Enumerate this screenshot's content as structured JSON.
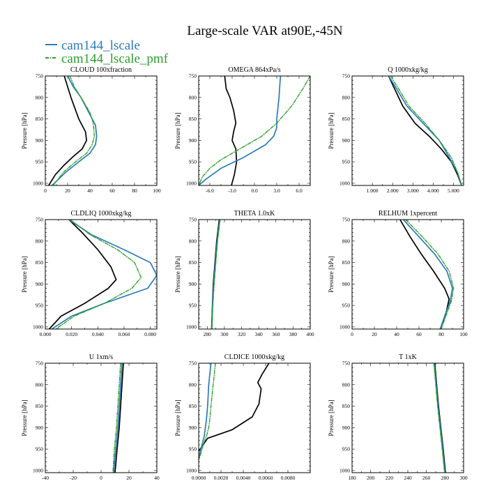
{
  "title": "Large-scale VAR at90E,-45N",
  "legend": [
    {
      "label": "cam144_lscale",
      "color": "#2b7bb9",
      "dashed": false
    },
    {
      "label": "cam144_lscale_pmf",
      "color": "#2ca02c",
      "dashed": true
    }
  ],
  "colors": {
    "control": "#000000",
    "lscale": "#2b7bb9",
    "pmf": "#2ca02c"
  },
  "chart_data": [
    {
      "type": "line",
      "title": "CLOUD 100xfraction",
      "ylabel": "Pressure [hPa]",
      "xlim": [
        0,
        100
      ],
      "ylim": [
        1005,
        750
      ],
      "xticks": [
        0,
        20,
        40,
        60,
        80,
        100
      ],
      "xtick_labels": [
        "0",
        "20",
        "40",
        "60",
        "80",
        "100"
      ],
      "yticks": [
        750,
        800,
        850,
        900,
        950,
        1000
      ],
      "ytick_labels": [
        "750",
        "800",
        "850",
        "900",
        "950",
        "1000"
      ],
      "series": [
        {
          "key": "control",
          "x": [
            17,
            20,
            23,
            30,
            36,
            37,
            33,
            24,
            16,
            9,
            3
          ],
          "y": [
            750,
            775,
            800,
            850,
            880,
            900,
            920,
            940,
            960,
            980,
            1005
          ]
        },
        {
          "key": "lscale",
          "x": [
            20,
            25,
            32,
            40,
            45,
            46,
            45,
            40,
            30,
            18,
            6
          ],
          "y": [
            750,
            775,
            800,
            840,
            865,
            890,
            910,
            930,
            950,
            975,
            1005
          ]
        },
        {
          "key": "pmf",
          "x": [
            22,
            26,
            32,
            40,
            43,
            44,
            42,
            37,
            27,
            16,
            7
          ],
          "y": [
            750,
            775,
            800,
            835,
            860,
            890,
            910,
            930,
            950,
            975,
            1005
          ]
        }
      ]
    },
    {
      "type": "line",
      "title": "OMEGA 864xPa/s",
      "ylabel": "Pressure [hPa]",
      "xlim": [
        -7.5,
        7.5
      ],
      "ylim": [
        1005,
        750
      ],
      "xticks": [
        -6,
        -3,
        0,
        3,
        6
      ],
      "xtick_labels": [
        "-6.0",
        "-3.0",
        "0.0",
        "3.0",
        "6.0"
      ],
      "yticks": [
        750,
        800,
        850,
        900,
        950,
        1000
      ],
      "ytick_labels": [
        "750",
        "800",
        "850",
        "900",
        "950",
        "1000"
      ],
      "series": [
        {
          "key": "control",
          "x": [
            -4.0,
            -3.8,
            -3.3,
            -2.8,
            -2.5,
            -2.8,
            -3.0,
            -2.5,
            -2.4,
            -2.7,
            -3.1
          ],
          "y": [
            750,
            780,
            800,
            830,
            860,
            880,
            900,
            920,
            950,
            980,
            1005
          ]
        },
        {
          "key": "lscale",
          "x": [
            3.5,
            3.3,
            3.0,
            3.0,
            2.6,
            1.5,
            -1.5,
            -4.5,
            -6.5,
            -7.5
          ],
          "y": [
            750,
            800,
            850,
            870,
            890,
            910,
            940,
            965,
            990,
            1005
          ]
        },
        {
          "key": "pmf",
          "x": [
            7.5,
            6.5,
            5.0,
            3.0,
            1.0,
            -2.0,
            -4.5,
            -6.0,
            -7.0,
            -7.5
          ],
          "y": [
            750,
            780,
            820,
            860,
            890,
            920,
            945,
            965,
            985,
            1005
          ]
        }
      ]
    },
    {
      "type": "line",
      "title": "Q 1000xkg/kg",
      "ylabel": "Pressure [hPa]",
      "xlim": [
        0,
        5.5
      ],
      "ylim": [
        1005,
        750
      ],
      "xticks": [
        1,
        2,
        3,
        4,
        5
      ],
      "xtick_labels": [
        "1.000",
        "2.000",
        "3.000",
        "4.000",
        "5.000"
      ],
      "yticks": [
        750,
        800,
        850,
        900,
        950,
        1000
      ],
      "ytick_labels": [
        "750",
        "800",
        "850",
        "900",
        "950",
        "1000"
      ],
      "series": [
        {
          "key": "control",
          "x": [
            1.8,
            2.1,
            2.5,
            3.1,
            3.8,
            4.4,
            4.9,
            5.2,
            5.4
          ],
          "y": [
            750,
            780,
            820,
            860,
            890,
            920,
            950,
            980,
            1005
          ]
        },
        {
          "key": "lscale",
          "x": [
            1.8,
            2.2,
            2.7,
            3.5,
            4.3,
            4.8,
            5.2,
            5.4
          ],
          "y": [
            750,
            780,
            820,
            860,
            900,
            940,
            975,
            1005
          ]
        },
        {
          "key": "pmf",
          "x": [
            1.9,
            2.3,
            2.8,
            3.6,
            4.3,
            4.9,
            5.2,
            5.4
          ],
          "y": [
            750,
            780,
            820,
            860,
            900,
            940,
            975,
            1005
          ]
        }
      ]
    },
    {
      "type": "line",
      "title": "CLDLIQ 1000xkg/kg",
      "ylabel": "Pressure [hPa]",
      "xlim": [
        0,
        0.085
      ],
      "ylim": [
        1005,
        750
      ],
      "xticks": [
        0,
        0.02,
        0.04,
        0.06,
        0.08
      ],
      "xtick_labels": [
        "0.000",
        "0.020",
        "0.040",
        "0.060",
        "0.080"
      ],
      "yticks": [
        750,
        800,
        850,
        900,
        950,
        1000
      ],
      "ytick_labels": [
        "750",
        "800",
        "850",
        "900",
        "950",
        "1000"
      ],
      "series": [
        {
          "key": "control",
          "x": [
            0.018,
            0.028,
            0.04,
            0.05,
            0.054,
            0.048,
            0.03,
            0.012,
            0.003
          ],
          "y": [
            750,
            780,
            820,
            860,
            890,
            910,
            945,
            975,
            1005
          ]
        },
        {
          "key": "lscale",
          "x": [
            0.018,
            0.035,
            0.06,
            0.08,
            0.085,
            0.078,
            0.045,
            0.02,
            0.005
          ],
          "y": [
            750,
            785,
            820,
            850,
            880,
            910,
            945,
            975,
            1005
          ]
        },
        {
          "key": "pmf",
          "x": [
            0.019,
            0.034,
            0.055,
            0.068,
            0.073,
            0.066,
            0.045,
            0.022,
            0.008
          ],
          "y": [
            750,
            785,
            820,
            850,
            885,
            910,
            945,
            975,
            1005
          ]
        }
      ]
    },
    {
      "type": "line",
      "title": "THETA 1.0xK",
      "ylabel": "Pressure [hPa]",
      "xlim": [
        270,
        400
      ],
      "ylim": [
        1005,
        750
      ],
      "xticks": [
        280,
        300,
        320,
        340,
        360,
        380,
        400
      ],
      "xtick_labels": [
        "280",
        "300",
        "320",
        "340",
        "360",
        "380",
        "400"
      ],
      "yticks": [
        750,
        800,
        850,
        900,
        950,
        1000
      ],
      "ytick_labels": [
        "750",
        "800",
        "850",
        "900",
        "950",
        "1000"
      ],
      "series": [
        {
          "key": "control",
          "x": [
            294,
            291,
            289,
            287,
            286,
            285
          ],
          "y": [
            750,
            800,
            850,
            900,
            950,
            1005
          ]
        },
        {
          "key": "lscale",
          "x": [
            294.5,
            291.5,
            289.5,
            287.5,
            286.2,
            285.3
          ],
          "y": [
            750,
            800,
            850,
            900,
            950,
            1005
          ]
        },
        {
          "key": "pmf",
          "x": [
            295,
            292,
            290,
            288,
            286.5,
            285.5
          ],
          "y": [
            750,
            800,
            850,
            900,
            950,
            1005
          ]
        }
      ]
    },
    {
      "type": "line",
      "title": "RELHUM 1xpercent",
      "ylabel": "Pressure [hPa]",
      "xlim": [
        0,
        100
      ],
      "ylim": [
        1005,
        750
      ],
      "xticks": [
        0,
        20,
        40,
        60,
        80,
        100
      ],
      "xtick_labels": [
        "0",
        "20",
        "40",
        "60",
        "80",
        "100"
      ],
      "yticks": [
        750,
        800,
        850,
        900,
        950,
        1000
      ],
      "ytick_labels": [
        "750",
        "800",
        "850",
        "900",
        "950",
        "1000"
      ],
      "series": [
        {
          "key": "control",
          "x": [
            43,
            52,
            62,
            73,
            83,
            87,
            84,
            79
          ],
          "y": [
            750,
            790,
            830,
            870,
            910,
            935,
            970,
            1005
          ]
        },
        {
          "key": "lscale",
          "x": [
            46,
            60,
            74,
            85,
            90,
            88,
            83,
            79
          ],
          "y": [
            750,
            790,
            830,
            870,
            910,
            940,
            975,
            1005
          ]
        },
        {
          "key": "pmf",
          "x": [
            48,
            63,
            77,
            87,
            91,
            89,
            84,
            80
          ],
          "y": [
            750,
            790,
            830,
            870,
            910,
            940,
            975,
            1005
          ]
        }
      ]
    },
    {
      "type": "line",
      "title": "U 1xm/s",
      "ylabel": "Pressure [hPa]",
      "xlim": [
        -40,
        40
      ],
      "ylim": [
        1005,
        750
      ],
      "xticks": [
        -40,
        -20,
        0,
        20,
        40
      ],
      "xtick_labels": [
        "-40",
        "-20",
        "0",
        "20",
        "40"
      ],
      "yticks": [
        750,
        800,
        850,
        900,
        950,
        1000
      ],
      "ytick_labels": [
        "750",
        "800",
        "850",
        "900",
        "950",
        "1000"
      ],
      "series": [
        {
          "key": "control",
          "x": [
            16,
            15,
            14,
            13,
            11.5,
            10
          ],
          "y": [
            750,
            800,
            850,
            900,
            950,
            1005
          ]
        },
        {
          "key": "lscale",
          "x": [
            15,
            14,
            13,
            12,
            10.5,
            9
          ],
          "y": [
            750,
            800,
            850,
            900,
            950,
            1005
          ]
        },
        {
          "key": "pmf",
          "x": [
            14,
            13,
            12,
            11,
            9.5,
            8.5
          ],
          "y": [
            750,
            800,
            850,
            900,
            950,
            1005
          ]
        }
      ]
    },
    {
      "type": "line",
      "title": "CLDICE 1000xkg/kg",
      "ylabel": "Pressure [hPa]",
      "xlim": [
        0,
        0.01
      ],
      "ylim": [
        1005,
        750
      ],
      "xticks": [
        0,
        0.002,
        0.004,
        0.006,
        0.008
      ],
      "xtick_labels": [
        "0.0000",
        "0.0020",
        "0.0040",
        "0.0060",
        "0.0080"
      ],
      "yticks": [
        750,
        800,
        850,
        900,
        950,
        1000
      ],
      "ytick_labels": [
        "750",
        "800",
        "850",
        "900",
        "950",
        "1000"
      ],
      "series": [
        {
          "key": "control",
          "x": [
            0.0063,
            0.0057,
            0.0053,
            0.0056,
            0.0054,
            0.0048,
            0.003,
            0.0008,
            0.0004,
            0.0
          ],
          "y": [
            750,
            775,
            795,
            810,
            845,
            875,
            905,
            925,
            940,
            955
          ]
        },
        {
          "key": "lscale",
          "x": [
            0.0011,
            0.0009,
            0.0008,
            0.0007,
            0.0006,
            0.0005,
            0.0003,
            0.0001,
            0.0
          ],
          "y": [
            750,
            800,
            850,
            880,
            900,
            920,
            940,
            960,
            975
          ]
        },
        {
          "key": "pmf",
          "x": [
            0.0015,
            0.0013,
            0.0011,
            0.001,
            0.0009,
            0.0007,
            0.0004,
            0.0002,
            0.0
          ],
          "y": [
            750,
            800,
            850,
            880,
            900,
            920,
            940,
            960,
            975
          ]
        }
      ]
    },
    {
      "type": "line",
      "title": "T 1xK",
      "ylabel": "Pressure [hPa]",
      "xlim": [
        180,
        300
      ],
      "ylim": [
        1005,
        750
      ],
      "xticks": [
        180,
        200,
        220,
        240,
        260,
        280,
        300
      ],
      "xtick_labels": [
        "180",
        "200",
        "220",
        "240",
        "260",
        "280",
        "300"
      ],
      "yticks": [
        750,
        800,
        850,
        900,
        950,
        1000
      ],
      "ytick_labels": [
        "750",
        "800",
        "850",
        "900",
        "950",
        "1000"
      ],
      "series": [
        {
          "key": "control",
          "x": [
            269,
            271,
            273,
            275.5,
            278,
            280.5
          ],
          "y": [
            750,
            800,
            850,
            900,
            950,
            1005
          ]
        },
        {
          "key": "lscale",
          "x": [
            268.5,
            270.5,
            272.5,
            275,
            277.5,
            280
          ],
          "y": [
            750,
            800,
            850,
            900,
            950,
            1005
          ]
        },
        {
          "key": "pmf",
          "x": [
            268,
            270,
            272,
            274.5,
            277,
            279.5
          ],
          "y": [
            750,
            800,
            850,
            900,
            950,
            1005
          ]
        }
      ]
    }
  ]
}
